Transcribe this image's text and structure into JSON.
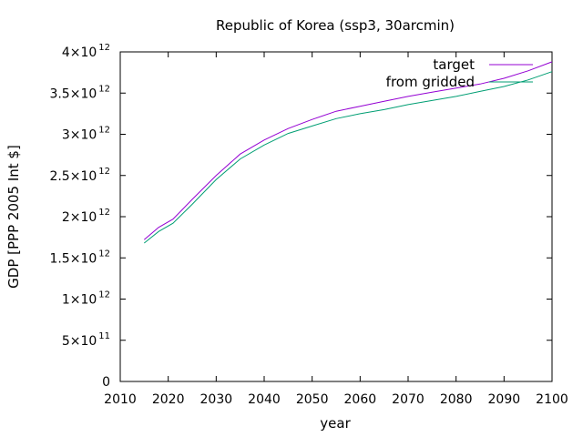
{
  "chart_data": {
    "type": "line",
    "title": "Republic of Korea (ssp3, 30arcmin)",
    "xlabel": "year",
    "ylabel": "GDP [PPP 2005 Int $]",
    "xlim": [
      2010,
      2100
    ],
    "ylim": [
      0,
      4000000000000
    ],
    "grid": false,
    "legend_position": "top-right",
    "x_ticks": [
      {
        "value": 2010,
        "label": "2010"
      },
      {
        "value": 2020,
        "label": "2020"
      },
      {
        "value": 2030,
        "label": "2030"
      },
      {
        "value": 2040,
        "label": "2040"
      },
      {
        "value": 2050,
        "label": "2050"
      },
      {
        "value": 2060,
        "label": "2060"
      },
      {
        "value": 2070,
        "label": "2070"
      },
      {
        "value": 2080,
        "label": "2080"
      },
      {
        "value": 2090,
        "label": "2090"
      },
      {
        "value": 2100,
        "label": "2100"
      }
    ],
    "y_ticks": [
      {
        "value": 0,
        "mantissa": "0",
        "exponent": ""
      },
      {
        "value": 500000000000,
        "mantissa": "5×10",
        "exponent": "11"
      },
      {
        "value": 1000000000000,
        "mantissa": "1×10",
        "exponent": "12"
      },
      {
        "value": 1500000000000,
        "mantissa": "1.5×10",
        "exponent": "12"
      },
      {
        "value": 2000000000000,
        "mantissa": "2×10",
        "exponent": "12"
      },
      {
        "value": 2500000000000,
        "mantissa": "2.5×10",
        "exponent": "12"
      },
      {
        "value": 3000000000000,
        "mantissa": "3×10",
        "exponent": "12"
      },
      {
        "value": 3500000000000,
        "mantissa": "3.5×10",
        "exponent": "12"
      },
      {
        "value": 4000000000000,
        "mantissa": "4×10",
        "exponent": "12"
      }
    ],
    "series": [
      {
        "name": "target",
        "color": "#9400d3",
        "x": [
          2015,
          2018,
          2021,
          2025,
          2030,
          2035,
          2040,
          2045,
          2050,
          2055,
          2060,
          2065,
          2070,
          2075,
          2080,
          2085,
          2090,
          2095,
          2100
        ],
        "y": [
          1720000000000,
          1870000000000,
          1970000000000,
          2210000000000,
          2500000000000,
          2760000000000,
          2930000000000,
          3070000000000,
          3180000000000,
          3280000000000,
          3340000000000,
          3400000000000,
          3460000000000,
          3510000000000,
          3560000000000,
          3610000000000,
          3680000000000,
          3770000000000,
          3880000000000
        ]
      },
      {
        "name": "from gridded",
        "color": "#009e73",
        "x": [
          2015,
          2018,
          2021,
          2025,
          2030,
          2035,
          2040,
          2045,
          2050,
          2055,
          2060,
          2065,
          2070,
          2075,
          2080,
          2085,
          2090,
          2095,
          2100
        ],
        "y": [
          1680000000000,
          1820000000000,
          1920000000000,
          2150000000000,
          2450000000000,
          2700000000000,
          2870000000000,
          3010000000000,
          3100000000000,
          3190000000000,
          3250000000000,
          3300000000000,
          3360000000000,
          3410000000000,
          3460000000000,
          3520000000000,
          3580000000000,
          3660000000000,
          3760000000000
        ]
      }
    ]
  }
}
